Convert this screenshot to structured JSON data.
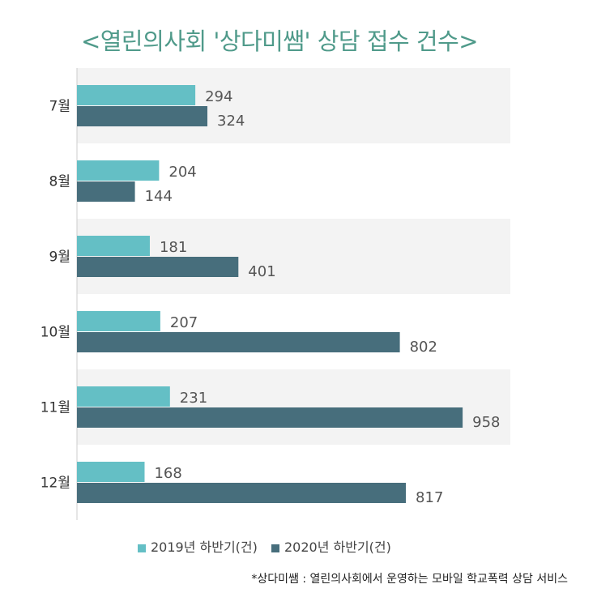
{
  "chart_data": {
    "type": "bar",
    "orientation": "horizontal",
    "title": "<열린의사회 '상다미쌤' 상담 접수 건수>",
    "categories": [
      "7월",
      "8월",
      "9월",
      "10월",
      "11월",
      "12월"
    ],
    "series": [
      {
        "name": "2019년 하반기(건)",
        "color": "#64bfc5",
        "values": [
          294,
          204,
          181,
          207,
          231,
          168
        ]
      },
      {
        "name": "2020년 하반기(건)",
        "color": "#476e7c",
        "values": [
          324,
          144,
          401,
          802,
          958,
          817
        ]
      }
    ],
    "xlim": [
      0,
      1000
    ],
    "grid": false,
    "legend_position": "bottom",
    "band_color": "#f3f3f3"
  },
  "footnote": "*상다미쌤 : 열린의사회에서 운영하는 모바일 학교폭력 상담 서비스"
}
